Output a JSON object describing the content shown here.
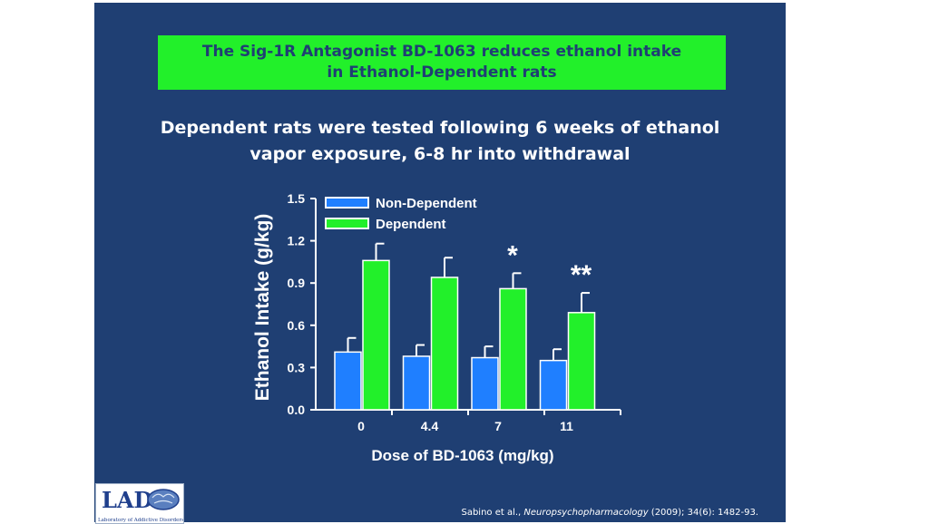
{
  "title": {
    "line1": "The Sig-1R Antagonist BD-1063 reduces ethanol intake",
    "line2": "in Ethanol-Dependent rats"
  },
  "subtitle": {
    "line1": "Dependent rats were tested following 6 weeks of ethanol",
    "line2": "vapor  exposure, 6-8 hr into withdrawal"
  },
  "citation": {
    "authors": "Sabino et al., ",
    "journal": "Neuropsychopharmacology",
    "details": " (2009); 34(6): 1482-93."
  },
  "logo": {
    "letters": "LAD",
    "caption": "Laboratory of Addictive Disorders"
  },
  "colors": {
    "background": "#1f3f73",
    "title_box": "#22f02a",
    "non_dependent": "#1f7fff",
    "dependent": "#22f02a",
    "text": "#ffffff"
  },
  "chart_data": {
    "type": "bar",
    "title": "",
    "xlabel": "Dose of BD-1063 (mg/kg)",
    "ylabel": "Ethanol Intake (g/kg)",
    "categories": [
      "0",
      "4.4",
      "7",
      "11"
    ],
    "ylim": [
      0,
      1.5
    ],
    "yticks": [
      "0.0",
      "0.3",
      "0.6",
      "0.9",
      "1.2",
      "1.5"
    ],
    "grid": false,
    "legend_position": "top-left",
    "series": [
      {
        "name": "Non-Dependent",
        "values": [
          0.41,
          0.38,
          0.37,
          0.35
        ],
        "errors": [
          0.1,
          0.08,
          0.08,
          0.08
        ],
        "color": "#1f7fff"
      },
      {
        "name": "Dependent",
        "values": [
          1.06,
          0.94,
          0.86,
          0.69
        ],
        "errors": [
          0.12,
          0.14,
          0.11,
          0.14
        ],
        "color": "#22f02a"
      }
    ],
    "annotations": [
      {
        "category": "7",
        "text": "*"
      },
      {
        "category": "11",
        "text": "**"
      }
    ]
  }
}
